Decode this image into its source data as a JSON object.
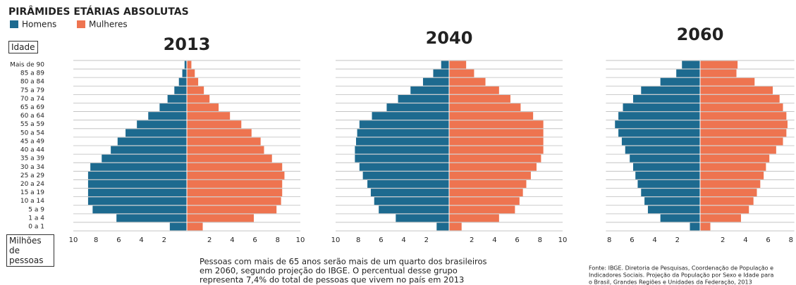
{
  "chart_data": {
    "type": "pyramid",
    "title": "PIRÂMIDES ETÁRIAS ABSOLUTAS",
    "y_label": "Idade",
    "x_label": "Milhões de pessoas",
    "categories": [
      "0 a 1",
      "1 a 4",
      "5 a 9",
      "10 a 14",
      "15 a 19",
      "20 a 24",
      "25 a 29",
      "30 a 34",
      "35 a 39",
      "40 a 44",
      "45 a 49",
      "50 a 54",
      "55 a 59",
      "60 a 64",
      "65 a 69",
      "70 a 74",
      "75 a 79",
      "80 a 84",
      "85 a 89",
      "Mais de 90"
    ],
    "series": [
      {
        "name": "Homens",
        "color": "#1d6a8f"
      },
      {
        "name": "Mulheres",
        "color": "#ee7450"
      }
    ],
    "panels": [
      {
        "title": "2013",
        "xlim": [
          0,
          10
        ],
        "xticks": [
          2,
          4,
          6,
          8,
          10
        ],
        "series": [
          {
            "values": [
              1.5,
              6.2,
              8.3,
              8.7,
              8.7,
              8.7,
              8.7,
              8.5,
              7.5,
              6.7,
              6.1,
              5.4,
              4.4,
              3.4,
              2.4,
              1.7,
              1.1,
              0.7,
              0.4,
              0.2
            ]
          },
          {
            "values": [
              1.4,
              5.9,
              7.9,
              8.3,
              8.4,
              8.4,
              8.6,
              8.4,
              7.5,
              6.8,
              6.5,
              5.7,
              4.8,
              3.8,
              2.8,
              2.0,
              1.5,
              1.0,
              0.7,
              0.4
            ]
          }
        ]
      },
      {
        "title": "2040",
        "xlim": [
          0,
          10
        ],
        "xticks": [
          2,
          4,
          6,
          8,
          10
        ],
        "series": [
          {
            "values": [
              1.1,
              4.7,
              6.2,
              6.6,
              6.9,
              7.2,
              7.6,
              7.9,
              8.3,
              8.3,
              8.2,
              8.1,
              7.9,
              6.8,
              5.5,
              4.5,
              3.4,
              2.3,
              1.4,
              0.7
            ]
          },
          {
            "values": [
              1.1,
              4.4,
              5.8,
              6.2,
              6.5,
              6.8,
              7.2,
              7.7,
              8.1,
              8.3,
              8.3,
              8.3,
              8.3,
              7.4,
              6.3,
              5.4,
              4.4,
              3.2,
              2.2,
              1.5
            ]
          }
        ]
      },
      {
        "title": "2060",
        "xlim": [
          0,
          8.3
        ],
        "xticks": [
          2,
          4,
          6,
          8
        ],
        "series": [
          {
            "values": [
              0.9,
              3.5,
              4.6,
              4.9,
              5.2,
              5.5,
              5.7,
              5.9,
              6.2,
              6.6,
              6.9,
              7.2,
              7.5,
              7.2,
              6.8,
              5.9,
              5.2,
              3.5,
              2.1,
              1.6
            ]
          },
          {
            "values": [
              0.9,
              3.6,
              4.3,
              4.7,
              5.0,
              5.3,
              5.6,
              5.8,
              6.1,
              6.7,
              7.3,
              7.6,
              7.7,
              7.6,
              7.3,
              7.0,
              6.4,
              4.8,
              3.2,
              3.3
            ]
          }
        ]
      }
    ],
    "caption_lines": [
      "Pessoas com mais de 65 anos serão mais de um quarto dos brasileiros",
      "em 2060, segundo projeção do IBGE. O percentual desse grupo",
      "representa 7,4% do total de pessoas que vivem no país em 2013"
    ],
    "source_lines": [
      "Fonte: IBGE. Diretoria de Pesquisas, Coordenação de População e",
      "Indicadores Sociais. Projeção da População por Sexo e Idade para",
      "o Brasil, Grandes Regiões e Unidades da Federação, 2013"
    ]
  }
}
